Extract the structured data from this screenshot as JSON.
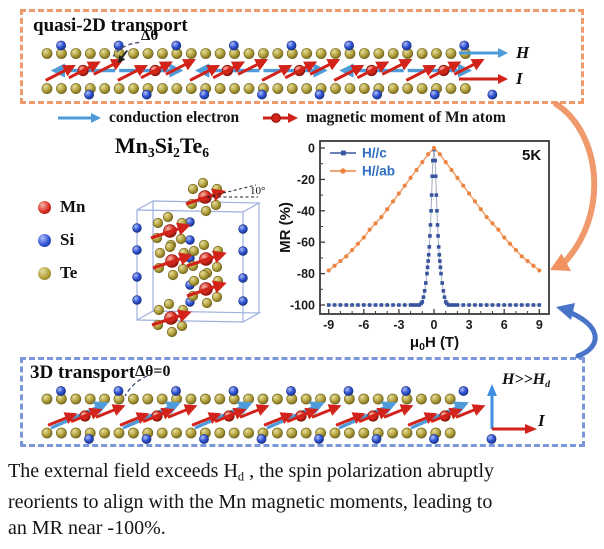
{
  "quasi2d": {
    "title": "quasi-2D transport",
    "delta_theta": "Δθ",
    "h_label": "H",
    "i_label": "I",
    "border_color": "#f09b6b"
  },
  "legend_row": {
    "conduction": "conduction electron",
    "moment": "magnetic moment of Mn atom",
    "electron_arrow_color": "#4f9bd9",
    "moment_arrow_color": "#d2231a"
  },
  "crystal": {
    "formula_parts": [
      "Mn",
      "3",
      "Si",
      "2",
      "Te",
      "6"
    ],
    "angle_label": "10°",
    "atom_legend": [
      {
        "symbol": "Mn",
        "color": "#d82c1e"
      },
      {
        "symbol": "Si",
        "color": "#2f52d5"
      },
      {
        "symbol": "Te",
        "color": "#b3a23c"
      }
    ]
  },
  "transport3d": {
    "title": "3D transport",
    "delta_theta": "Δθ=0",
    "h_label_main": "H>>H",
    "h_label_sub": "d",
    "i_label": "I",
    "border_color": "#7b96db"
  },
  "caption": {
    "line1_pre": "The external field exceeds H",
    "line1_sub": "d",
    "line1_post": " , the spin polarization abruptly",
    "line2": "reorients to align with the Mn magnetic moments, leading to",
    "line3": "an MR near -100%."
  },
  "chart_data": {
    "type": "scatter",
    "title": "",
    "xlabel_parts": [
      "μ",
      "0",
      "H (T)"
    ],
    "ylabel": "MR (%)",
    "annotation": "5K",
    "xlim": [
      -9.6,
      9.6
    ],
    "ylim": [
      -107,
      4
    ],
    "xticks": [
      -9,
      -6,
      -3,
      0,
      3,
      6,
      9
    ],
    "yticks": [
      0,
      -20,
      -40,
      -60,
      -80,
      -100
    ],
    "grid": false,
    "legend_position": "top-left",
    "legend_text_color": "#2e6fc0",
    "series": [
      {
        "name": "H//c",
        "marker": "square",
        "color": "#39549f",
        "x": [
          -9,
          -8.5,
          -8,
          -7.5,
          -7,
          -6.5,
          -6,
          -5.5,
          -5,
          -4.5,
          -4,
          -3.5,
          -3,
          -2.5,
          -2,
          -1.75,
          -1.5,
          -1.25,
          -1.1,
          -1,
          -0.9,
          -0.8,
          -0.7,
          -0.6,
          -0.55,
          -0.5,
          -0.45,
          -0.4,
          -0.35,
          -0.3,
          -0.25,
          -0.2,
          -0.15,
          -0.1,
          0,
          0.1,
          0.15,
          0.2,
          0.25,
          0.3,
          0.35,
          0.4,
          0.45,
          0.5,
          0.55,
          0.6,
          0.7,
          0.8,
          0.9,
          1,
          1.1,
          1.25,
          1.5,
          1.75,
          2,
          2.5,
          3,
          3.5,
          4,
          4.5,
          5,
          5.5,
          6,
          6.5,
          7,
          7.5,
          8,
          8.5,
          9
        ],
        "y": [
          -100,
          -100,
          -100,
          -100,
          -100,
          -100,
          -100,
          -100,
          -100,
          -100,
          -100,
          -100,
          -100,
          -100,
          -100,
          -100,
          -100,
          -100,
          -99,
          -98,
          -95,
          -91,
          -86,
          -80,
          -76,
          -72,
          -68,
          -63,
          -56,
          -49,
          -40,
          -30,
          -18,
          -8,
          -1,
          -8,
          -18,
          -30,
          -40,
          -49,
          -56,
          -63,
          -68,
          -72,
          -76,
          -80,
          -86,
          -91,
          -95,
          -98,
          -99,
          -100,
          -100,
          -100,
          -100,
          -100,
          -100,
          -100,
          -100,
          -100,
          -100,
          -100,
          -100,
          -100,
          -100,
          -100,
          -100,
          -100,
          -100
        ]
      },
      {
        "name": "H//ab",
        "marker": "circle",
        "color": "#ec8441",
        "x": [
          -9,
          -8.5,
          -8,
          -7.5,
          -7,
          -6.5,
          -6,
          -5.5,
          -5,
          -4.5,
          -4,
          -3.5,
          -3,
          -2.5,
          -2,
          -1.5,
          -1,
          -0.5,
          0,
          0.5,
          1,
          1.5,
          2,
          2.5,
          3,
          3.5,
          4,
          4.5,
          5,
          5.5,
          6,
          6.5,
          7,
          7.5,
          8,
          8.5,
          9
        ],
        "y": [
          -78,
          -75,
          -72,
          -69,
          -65,
          -61,
          -57,
          -52,
          -48,
          -44,
          -39,
          -34,
          -29,
          -24,
          -19,
          -14,
          -9,
          -4,
          0,
          -4,
          -9,
          -14,
          -19,
          -24,
          -29,
          -34,
          -39,
          -44,
          -48,
          -52,
          -57,
          -61,
          -65,
          -69,
          -72,
          -75,
          -78
        ]
      }
    ]
  }
}
